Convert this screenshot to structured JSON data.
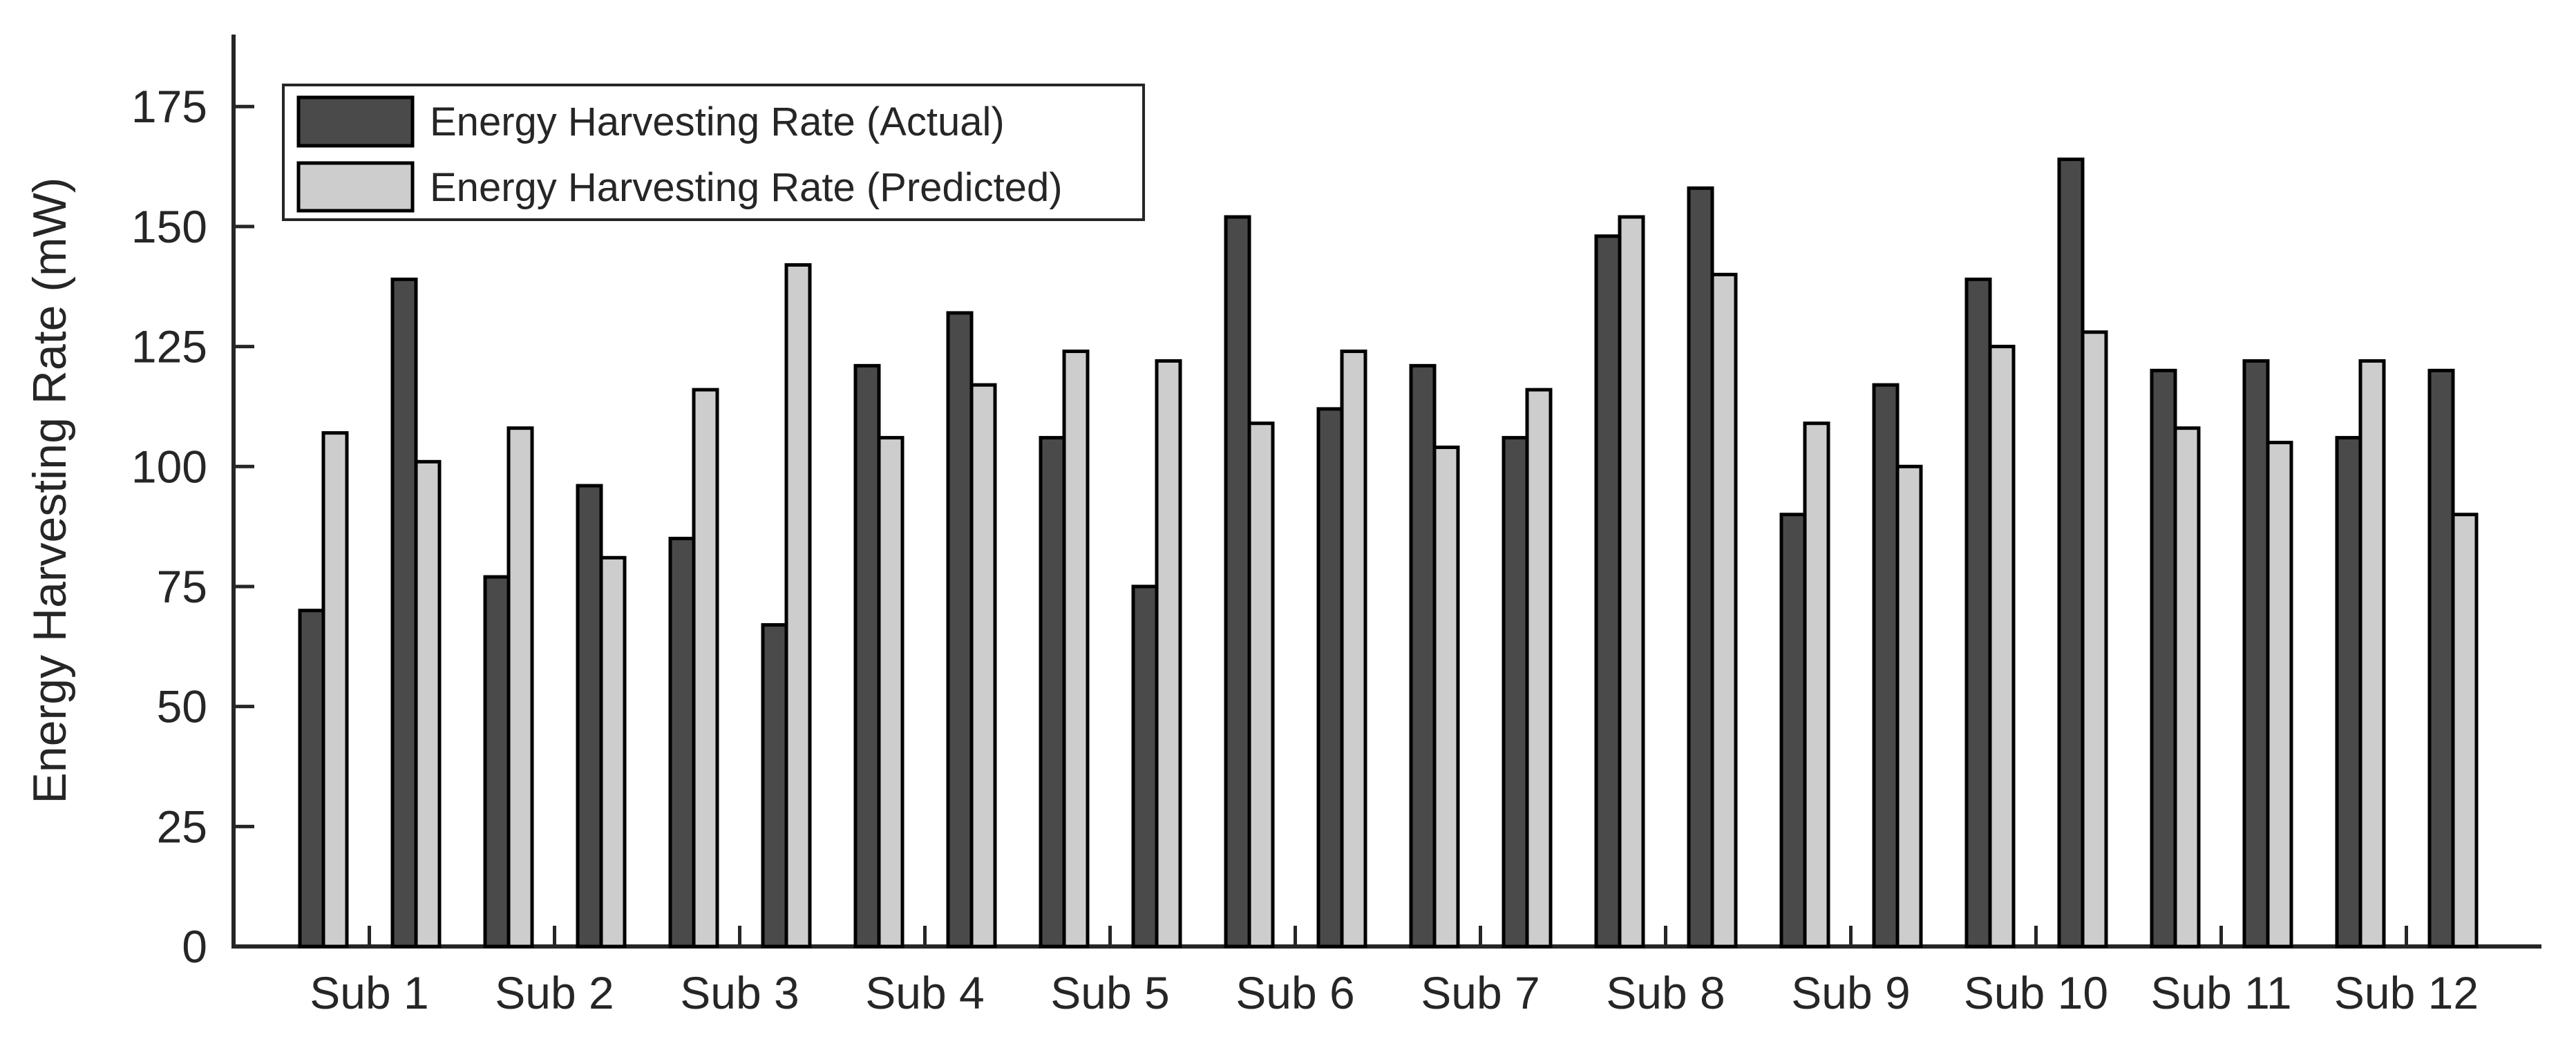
{
  "chart_data": {
    "type": "bar",
    "title": "",
    "xlabel": "",
    "ylabel": "Energy Harvesting Rate (mW)",
    "categories": [
      "Sub 1",
      "Sub 2",
      "Sub 3",
      "Sub 4",
      "Sub 5",
      "Sub 6",
      "Sub 7",
      "Sub 8",
      "Sub 9",
      "Sub 10",
      "Sub 11",
      "Sub 12"
    ],
    "yticks": [
      0,
      25,
      50,
      75,
      100,
      125,
      150,
      175
    ],
    "ylim": [
      0,
      190
    ],
    "grid": false,
    "legend_position": "top-left",
    "bars_per_category": 4,
    "group_structure": "two adjacent Actual+Predicted pairs per subject, x tick centered between the pairs",
    "series": [
      {
        "name": "Energy Harvesting Rate (Actual)",
        "color": "#4a4a4a",
        "values": [
          [
            70,
            139
          ],
          [
            77,
            96
          ],
          [
            85,
            67
          ],
          [
            121,
            132
          ],
          [
            106,
            75
          ],
          [
            152,
            112
          ],
          [
            121,
            106
          ],
          [
            148,
            158
          ],
          [
            90,
            117
          ],
          [
            139,
            164
          ],
          [
            120,
            122
          ],
          [
            106,
            120
          ]
        ]
      },
      {
        "name": "Energy Harvesting Rate (Predicted)",
        "color": "#cdcdcd",
        "values": [
          [
            107,
            101
          ],
          [
            108,
            81
          ],
          [
            116,
            142
          ],
          [
            106,
            117
          ],
          [
            124,
            122
          ],
          [
            109,
            124
          ],
          [
            104,
            116
          ],
          [
            152,
            140
          ],
          [
            109,
            100
          ],
          [
            125,
            128
          ],
          [
            108,
            105
          ],
          [
            122,
            90
          ]
        ]
      }
    ],
    "bar_edge_color": "#000000",
    "axis_color": "#262626"
  }
}
